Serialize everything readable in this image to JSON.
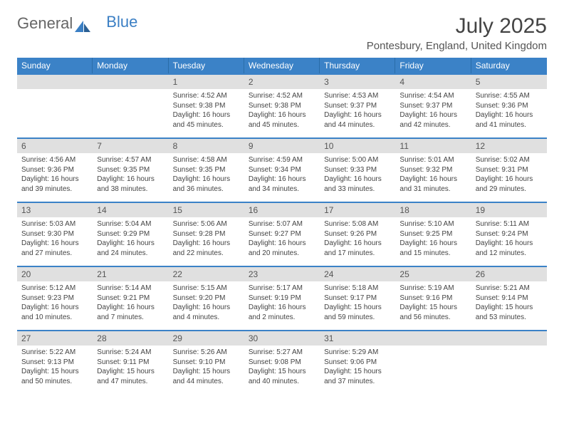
{
  "logo": {
    "part1": "General",
    "part2": "Blue"
  },
  "title": "July 2025",
  "location": "Pontesbury, England, United Kingdom",
  "colors": {
    "header_bg": "#3b82c7",
    "datebar_bg": "#e0e0e0",
    "text": "#444444",
    "border": "#3b82c7"
  },
  "day_headers": [
    "Sunday",
    "Monday",
    "Tuesday",
    "Wednesday",
    "Thursday",
    "Friday",
    "Saturday"
  ],
  "weeks": [
    [
      {
        "date": "",
        "empty": true
      },
      {
        "date": "",
        "empty": true
      },
      {
        "date": "1",
        "sunrise": "Sunrise: 4:52 AM",
        "sunset": "Sunset: 9:38 PM",
        "daylight": "Daylight: 16 hours and 45 minutes."
      },
      {
        "date": "2",
        "sunrise": "Sunrise: 4:52 AM",
        "sunset": "Sunset: 9:38 PM",
        "daylight": "Daylight: 16 hours and 45 minutes."
      },
      {
        "date": "3",
        "sunrise": "Sunrise: 4:53 AM",
        "sunset": "Sunset: 9:37 PM",
        "daylight": "Daylight: 16 hours and 44 minutes."
      },
      {
        "date": "4",
        "sunrise": "Sunrise: 4:54 AM",
        "sunset": "Sunset: 9:37 PM",
        "daylight": "Daylight: 16 hours and 42 minutes."
      },
      {
        "date": "5",
        "sunrise": "Sunrise: 4:55 AM",
        "sunset": "Sunset: 9:36 PM",
        "daylight": "Daylight: 16 hours and 41 minutes."
      }
    ],
    [
      {
        "date": "6",
        "sunrise": "Sunrise: 4:56 AM",
        "sunset": "Sunset: 9:36 PM",
        "daylight": "Daylight: 16 hours and 39 minutes."
      },
      {
        "date": "7",
        "sunrise": "Sunrise: 4:57 AM",
        "sunset": "Sunset: 9:35 PM",
        "daylight": "Daylight: 16 hours and 38 minutes."
      },
      {
        "date": "8",
        "sunrise": "Sunrise: 4:58 AM",
        "sunset": "Sunset: 9:35 PM",
        "daylight": "Daylight: 16 hours and 36 minutes."
      },
      {
        "date": "9",
        "sunrise": "Sunrise: 4:59 AM",
        "sunset": "Sunset: 9:34 PM",
        "daylight": "Daylight: 16 hours and 34 minutes."
      },
      {
        "date": "10",
        "sunrise": "Sunrise: 5:00 AM",
        "sunset": "Sunset: 9:33 PM",
        "daylight": "Daylight: 16 hours and 33 minutes."
      },
      {
        "date": "11",
        "sunrise": "Sunrise: 5:01 AM",
        "sunset": "Sunset: 9:32 PM",
        "daylight": "Daylight: 16 hours and 31 minutes."
      },
      {
        "date": "12",
        "sunrise": "Sunrise: 5:02 AM",
        "sunset": "Sunset: 9:31 PM",
        "daylight": "Daylight: 16 hours and 29 minutes."
      }
    ],
    [
      {
        "date": "13",
        "sunrise": "Sunrise: 5:03 AM",
        "sunset": "Sunset: 9:30 PM",
        "daylight": "Daylight: 16 hours and 27 minutes."
      },
      {
        "date": "14",
        "sunrise": "Sunrise: 5:04 AM",
        "sunset": "Sunset: 9:29 PM",
        "daylight": "Daylight: 16 hours and 24 minutes."
      },
      {
        "date": "15",
        "sunrise": "Sunrise: 5:06 AM",
        "sunset": "Sunset: 9:28 PM",
        "daylight": "Daylight: 16 hours and 22 minutes."
      },
      {
        "date": "16",
        "sunrise": "Sunrise: 5:07 AM",
        "sunset": "Sunset: 9:27 PM",
        "daylight": "Daylight: 16 hours and 20 minutes."
      },
      {
        "date": "17",
        "sunrise": "Sunrise: 5:08 AM",
        "sunset": "Sunset: 9:26 PM",
        "daylight": "Daylight: 16 hours and 17 minutes."
      },
      {
        "date": "18",
        "sunrise": "Sunrise: 5:10 AM",
        "sunset": "Sunset: 9:25 PM",
        "daylight": "Daylight: 16 hours and 15 minutes."
      },
      {
        "date": "19",
        "sunrise": "Sunrise: 5:11 AM",
        "sunset": "Sunset: 9:24 PM",
        "daylight": "Daylight: 16 hours and 12 minutes."
      }
    ],
    [
      {
        "date": "20",
        "sunrise": "Sunrise: 5:12 AM",
        "sunset": "Sunset: 9:23 PM",
        "daylight": "Daylight: 16 hours and 10 minutes."
      },
      {
        "date": "21",
        "sunrise": "Sunrise: 5:14 AM",
        "sunset": "Sunset: 9:21 PM",
        "daylight": "Daylight: 16 hours and 7 minutes."
      },
      {
        "date": "22",
        "sunrise": "Sunrise: 5:15 AM",
        "sunset": "Sunset: 9:20 PM",
        "daylight": "Daylight: 16 hours and 4 minutes."
      },
      {
        "date": "23",
        "sunrise": "Sunrise: 5:17 AM",
        "sunset": "Sunset: 9:19 PM",
        "daylight": "Daylight: 16 hours and 2 minutes."
      },
      {
        "date": "24",
        "sunrise": "Sunrise: 5:18 AM",
        "sunset": "Sunset: 9:17 PM",
        "daylight": "Daylight: 15 hours and 59 minutes."
      },
      {
        "date": "25",
        "sunrise": "Sunrise: 5:19 AM",
        "sunset": "Sunset: 9:16 PM",
        "daylight": "Daylight: 15 hours and 56 minutes."
      },
      {
        "date": "26",
        "sunrise": "Sunrise: 5:21 AM",
        "sunset": "Sunset: 9:14 PM",
        "daylight": "Daylight: 15 hours and 53 minutes."
      }
    ],
    [
      {
        "date": "27",
        "sunrise": "Sunrise: 5:22 AM",
        "sunset": "Sunset: 9:13 PM",
        "daylight": "Daylight: 15 hours and 50 minutes."
      },
      {
        "date": "28",
        "sunrise": "Sunrise: 5:24 AM",
        "sunset": "Sunset: 9:11 PM",
        "daylight": "Daylight: 15 hours and 47 minutes."
      },
      {
        "date": "29",
        "sunrise": "Sunrise: 5:26 AM",
        "sunset": "Sunset: 9:10 PM",
        "daylight": "Daylight: 15 hours and 44 minutes."
      },
      {
        "date": "30",
        "sunrise": "Sunrise: 5:27 AM",
        "sunset": "Sunset: 9:08 PM",
        "daylight": "Daylight: 15 hours and 40 minutes."
      },
      {
        "date": "31",
        "sunrise": "Sunrise: 5:29 AM",
        "sunset": "Sunset: 9:06 PM",
        "daylight": "Daylight: 15 hours and 37 minutes."
      },
      {
        "date": "",
        "empty": true
      },
      {
        "date": "",
        "empty": true
      }
    ]
  ]
}
